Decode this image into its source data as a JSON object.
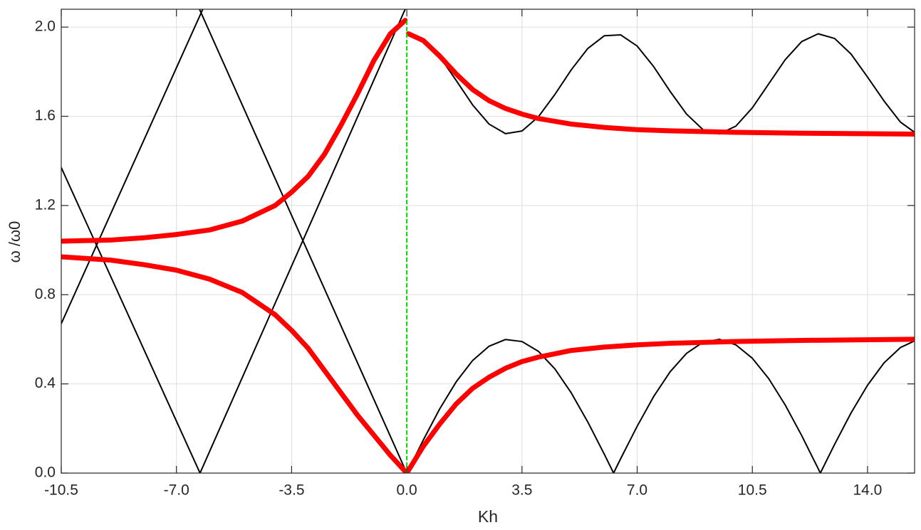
{
  "chart_data": {
    "type": "line",
    "xlabel": "Kh",
    "ylabel": "ω /ω0",
    "xlim": [
      -10.5,
      15.43
    ],
    "ylim": [
      0,
      2.08
    ],
    "xticks": [
      {
        "value": -10.5,
        "label": "-10.5"
      },
      {
        "value": -7,
        "label": "-7.0"
      },
      {
        "value": -3.5,
        "label": "-3.5"
      },
      {
        "value": 0,
        "label": "0.0"
      },
      {
        "value": 3.5,
        "label": "3.5"
      },
      {
        "value": 7,
        "label": "7.0"
      },
      {
        "value": 10.5,
        "label": "10.5"
      },
      {
        "value": 14,
        "label": "14.0"
      }
    ],
    "yticks": [
      {
        "value": 0,
        "label": "0.0"
      },
      {
        "value": 0.4,
        "label": "0.4"
      },
      {
        "value": 0.8,
        "label": "0.8"
      },
      {
        "value": 1.2,
        "label": "1.2"
      },
      {
        "value": 1.6,
        "label": "1.6"
      },
      {
        "value": 2,
        "label": "2.0"
      }
    ],
    "grid": true,
    "series": [
      {
        "color": "#000000",
        "linewidth": 2,
        "x": [
          -10.5,
          -6.283,
          -0.05
        ],
        "values": [
          1.37,
          0,
          2.08
        ]
      },
      {
        "color": "#000000",
        "linewidth": 2,
        "x": [
          -6.3,
          0
        ],
        "values": [
          2.08,
          0
        ]
      },
      {
        "color": "#000000",
        "linewidth": 2,
        "x": [
          -10.5,
          -6.2
        ],
        "values": [
          0.67,
          2.08
        ]
      },
      {
        "color": "#000000",
        "linewidth": 2,
        "x": [
          0,
          0.5,
          1,
          1.5,
          2,
          2.5,
          3,
          3.5,
          4,
          4.5,
          5,
          5.5,
          6,
          6.283,
          6.5,
          7,
          7.5,
          8,
          8.5,
          9,
          9.5,
          10,
          10.5,
          11,
          11.5,
          12,
          12.5,
          12.566,
          13,
          13.5,
          14,
          14.5,
          15,
          15.43
        ],
        "values": [
          0,
          0.148,
          0.288,
          0.409,
          0.505,
          0.569,
          0.599,
          0.59,
          0.546,
          0.467,
          0.359,
          0.229,
          0.085,
          0,
          0.065,
          0.21,
          0.343,
          0.454,
          0.537,
          0.587,
          0.6,
          0.575,
          0.515,
          0.423,
          0.305,
          0.168,
          0.02,
          0,
          0.129,
          0.27,
          0.394,
          0.494,
          0.563,
          0.593
        ]
      },
      {
        "color": "#000000",
        "linewidth": 2,
        "x": [
          0,
          0.5,
          1,
          1.5,
          2,
          2.5,
          3,
          3.5,
          4,
          4.5,
          5,
          5.5,
          6,
          6.5,
          7,
          7.5,
          8,
          8.5,
          9,
          9.5,
          10,
          10.5,
          11,
          11.5,
          12,
          12.5,
          13,
          13.5,
          14,
          14.5,
          15,
          15.43
        ],
        "values": [
          1.97,
          1.942,
          1.867,
          1.761,
          1.651,
          1.565,
          1.522,
          1.534,
          1.598,
          1.698,
          1.809,
          1.904,
          1.961,
          1.965,
          1.915,
          1.823,
          1.712,
          1.61,
          1.54,
          1.521,
          1.556,
          1.638,
          1.746,
          1.854,
          1.935,
          1.97,
          1.949,
          1.879,
          1.776,
          1.669,
          1.574,
          1.528
        ]
      },
      {
        "color": "#ff0000",
        "linewidth": 7,
        "x": [
          -10.5,
          -9,
          -8,
          -7,
          -6,
          -5,
          -4,
          -3.5,
          -3,
          -2.5,
          -2,
          -1.5,
          -1,
          -0.5,
          -0.05
        ],
        "values": [
          1.04,
          1.045,
          1.055,
          1.07,
          1.09,
          1.13,
          1.2,
          1.26,
          1.33,
          1.43,
          1.56,
          1.7,
          1.85,
          1.97,
          2.03
        ]
      },
      {
        "color": "#ff0000",
        "linewidth": 7,
        "x": [
          -10.5,
          -9,
          -8,
          -7,
          -6,
          -5,
          -4,
          -3.5,
          -3,
          -2.5,
          -2,
          -1.5,
          -1,
          -0.5,
          0
        ],
        "values": [
          0.97,
          0.955,
          0.935,
          0.91,
          0.87,
          0.81,
          0.71,
          0.64,
          0.56,
          0.46,
          0.36,
          0.26,
          0.17,
          0.08,
          0
        ]
      },
      {
        "color": "#ff0000",
        "linewidth": 7,
        "x": [
          0.05,
          0.5,
          1,
          1.5,
          2,
          2.5,
          3,
          3.5,
          4,
          5,
          6,
          7,
          8,
          10,
          12,
          15.43
        ],
        "values": [
          1.97,
          1.94,
          1.87,
          1.79,
          1.72,
          1.67,
          1.635,
          1.61,
          1.59,
          1.565,
          1.55,
          1.54,
          1.535,
          1.528,
          1.524,
          1.52
        ]
      },
      {
        "color": "#ff0000",
        "linewidth": 7,
        "x": [
          0,
          0.5,
          1,
          1.5,
          2,
          2.5,
          3,
          3.5,
          4,
          5,
          6,
          7,
          8,
          10,
          12,
          15.43
        ],
        "values": [
          0,
          0.12,
          0.22,
          0.31,
          0.38,
          0.43,
          0.47,
          0.5,
          0.52,
          0.55,
          0.565,
          0.575,
          0.582,
          0.59,
          0.595,
          0.6
        ]
      },
      {
        "color": "#00dd00",
        "linewidth": 2,
        "linestyle": "--",
        "x": [
          0,
          0
        ],
        "values": [
          0,
          2.03
        ]
      }
    ]
  }
}
